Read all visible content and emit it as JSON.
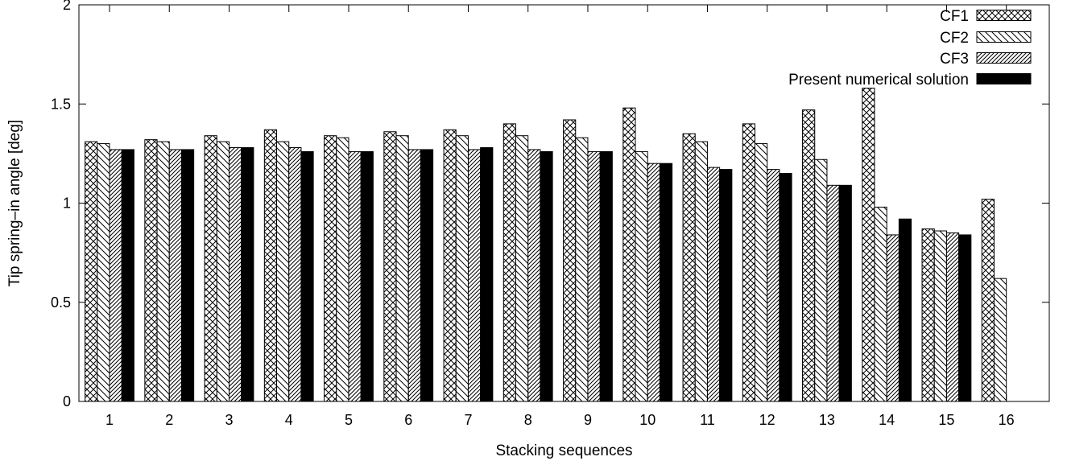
{
  "chart_data": {
    "type": "bar",
    "title": "",
    "xlabel": "Stacking sequences",
    "ylabel": "Tip spring–in angle [deg]",
    "ylim": [
      0,
      2
    ],
    "yticks": [
      "0",
      "0.5",
      "1",
      "1.5",
      "2"
    ],
    "grid": false,
    "legend_position": "top-right",
    "categories": [
      "1",
      "2",
      "3",
      "4",
      "5",
      "6",
      "7",
      "8",
      "9",
      "10",
      "11",
      "12",
      "13",
      "14",
      "15",
      "16"
    ],
    "series": [
      {
        "name": "CF1",
        "pattern": "crosshatch",
        "values": [
          1.31,
          1.32,
          1.34,
          1.37,
          1.34,
          1.36,
          1.37,
          1.4,
          1.42,
          1.48,
          1.35,
          1.4,
          1.47,
          1.58,
          0.87,
          1.02
        ]
      },
      {
        "name": "CF2",
        "pattern": "backslash",
        "values": [
          1.3,
          1.31,
          1.31,
          1.31,
          1.33,
          1.34,
          1.34,
          1.34,
          1.33,
          1.26,
          1.31,
          1.3,
          1.22,
          0.98,
          0.86,
          0.62
        ]
      },
      {
        "name": "CF3",
        "pattern": "slash",
        "values": [
          1.27,
          1.27,
          1.28,
          1.28,
          1.26,
          1.27,
          1.27,
          1.27,
          1.26,
          1.2,
          1.18,
          1.17,
          1.09,
          0.84,
          0.85,
          0
        ]
      },
      {
        "name": "Present numerical solution",
        "pattern": "solid",
        "values": [
          1.27,
          1.27,
          1.28,
          1.26,
          1.26,
          1.27,
          1.28,
          1.26,
          1.26,
          1.2,
          1.17,
          1.15,
          1.09,
          0.92,
          0.84,
          0
        ]
      }
    ]
  }
}
